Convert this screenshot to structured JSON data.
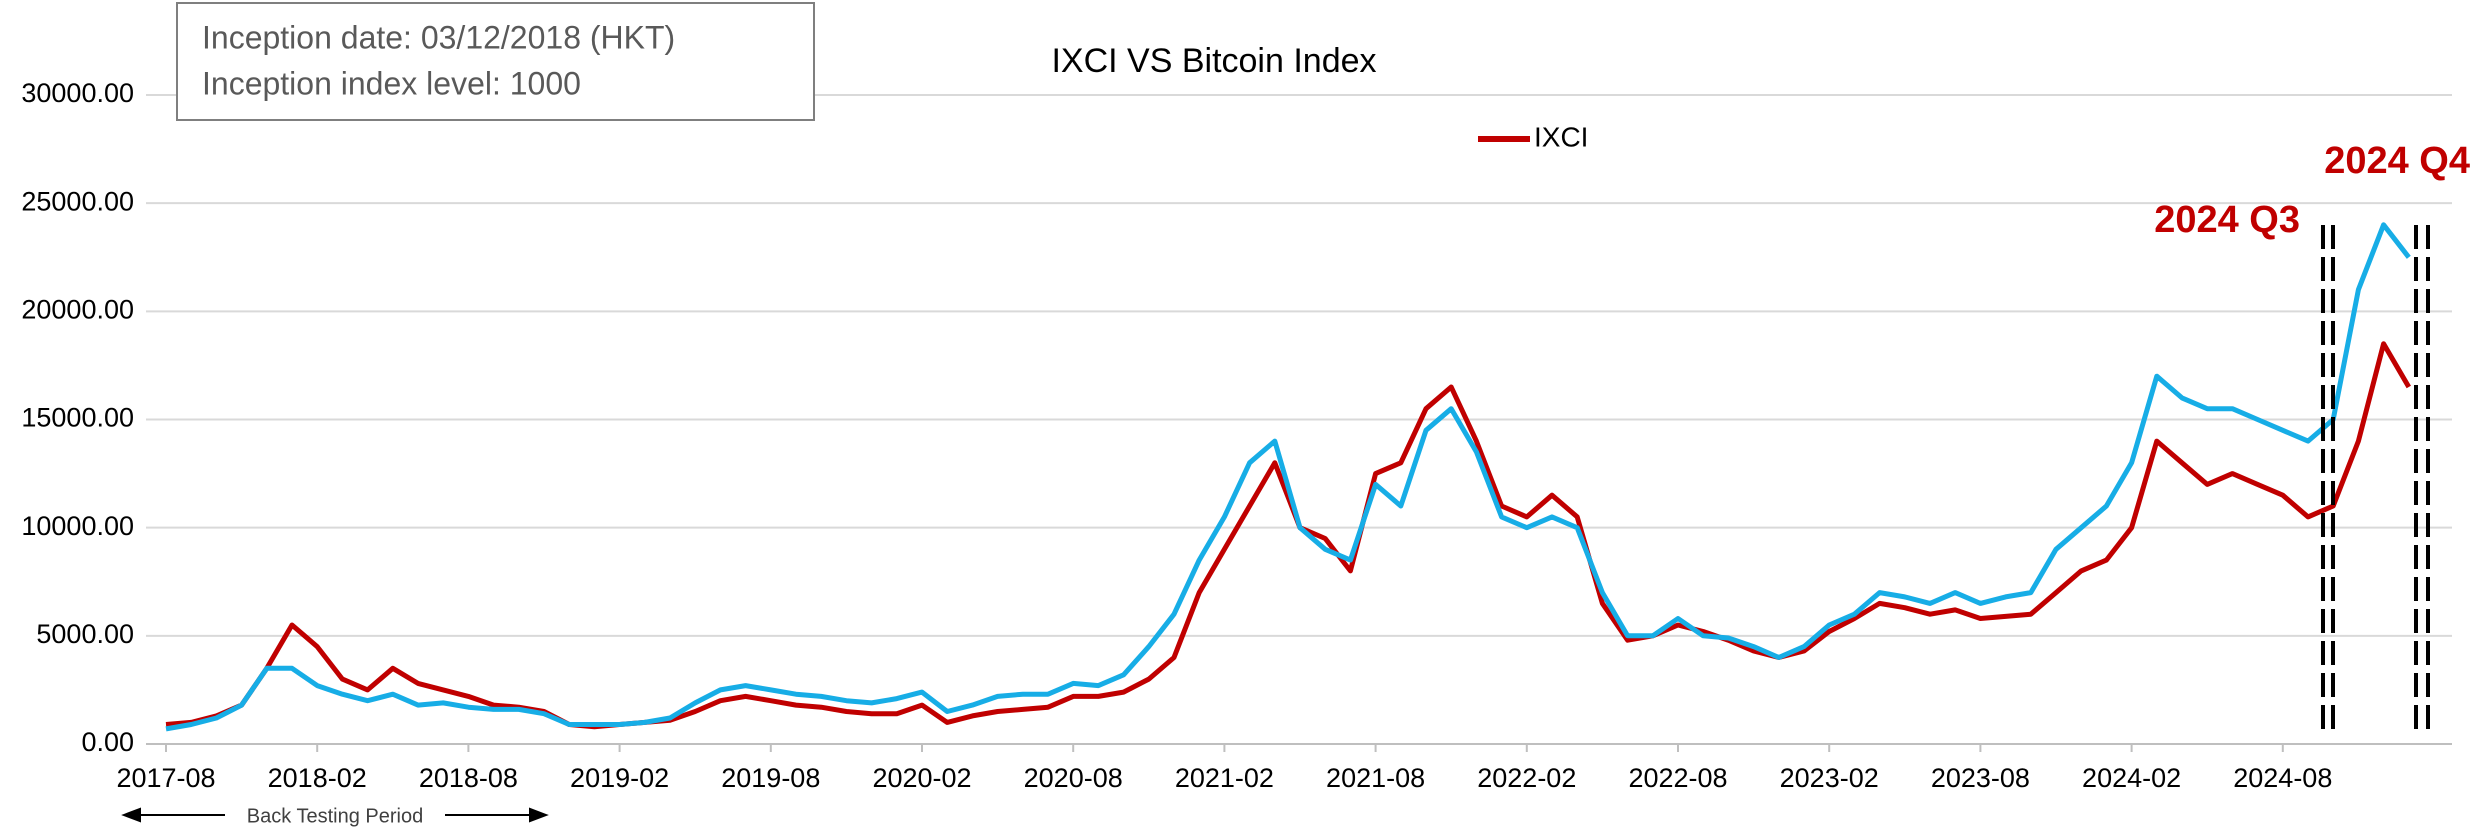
{
  "chart_data": {
    "type": "line",
    "title": "IXCI VS Bitcoin Index",
    "info_box": [
      "Inception date: 03/12/2018 (HKT)",
      "Inception index level: 1000"
    ],
    "annotations": [
      "2024 Q3",
      "2024 Q4"
    ],
    "period_label": "Back Testing Period",
    "x": [
      "2017-08",
      "2017-09",
      "2017-10",
      "2017-11",
      "2017-12",
      "2018-01",
      "2018-02",
      "2018-03",
      "2018-04",
      "2018-05",
      "2018-06",
      "2018-07",
      "2018-08",
      "2018-09",
      "2018-10",
      "2018-11",
      "2018-12",
      "2019-01",
      "2019-02",
      "2019-03",
      "2019-04",
      "2019-05",
      "2019-06",
      "2019-07",
      "2019-08",
      "2019-09",
      "2019-10",
      "2019-11",
      "2019-12",
      "2020-01",
      "2020-02",
      "2020-03",
      "2020-04",
      "2020-05",
      "2020-06",
      "2020-07",
      "2020-08",
      "2020-09",
      "2020-10",
      "2020-11",
      "2020-12",
      "2021-01",
      "2021-02",
      "2021-03",
      "2021-04",
      "2021-05",
      "2021-06",
      "2021-07",
      "2021-08",
      "2021-09",
      "2021-10",
      "2021-11",
      "2021-12",
      "2022-01",
      "2022-02",
      "2022-03",
      "2022-04",
      "2022-05",
      "2022-06",
      "2022-07",
      "2022-08",
      "2022-09",
      "2022-10",
      "2022-11",
      "2022-12",
      "2023-01",
      "2023-02",
      "2023-03",
      "2023-04",
      "2023-05",
      "2023-06",
      "2023-07",
      "2023-08",
      "2023-09",
      "2023-10",
      "2023-11",
      "2023-12",
      "2024-01",
      "2024-02",
      "2024-03",
      "2024-04",
      "2024-05",
      "2024-06",
      "2024-07",
      "2024-08",
      "2024-09",
      "2024-10",
      "2024-11",
      "2024-12",
      "2025-01"
    ],
    "series": [
      {
        "name": "IXCI",
        "color": "#c00000",
        "values": [
          900,
          1000,
          1300,
          1800,
          3500,
          5500,
          4500,
          3000,
          2500,
          3500,
          2800,
          2500,
          2200,
          1800,
          1700,
          1500,
          900,
          800,
          900,
          1000,
          1100,
          1500,
          2000,
          2200,
          2000,
          1800,
          1700,
          1500,
          1400,
          1400,
          1800,
          1000,
          1300,
          1500,
          1600,
          1700,
          2200,
          2200,
          2400,
          3000,
          4000,
          7000,
          9000,
          11000,
          13000,
          10000,
          9500,
          8000,
          12500,
          13000,
          15500,
          16500,
          14000,
          11000,
          10500,
          11500,
          10500,
          6500,
          4800,
          5000,
          5500,
          5200,
          4800,
          4300,
          4000,
          4300,
          5200,
          5800,
          6500,
          6300,
          6000,
          6200,
          5800,
          5900,
          6000,
          7000,
          8000,
          8500,
          10000,
          14000,
          13000,
          12000,
          12500,
          12000,
          11500,
          10500,
          11000,
          14000,
          18500,
          16500
        ]
      },
      {
        "color": "#17ade6",
        "values": [
          700,
          900,
          1200,
          1800,
          3500,
          3500,
          2700,
          2300,
          2000,
          2300,
          1800,
          1900,
          1700,
          1600,
          1600,
          1400,
          900,
          900,
          900,
          1000,
          1200,
          1900,
          2500,
          2700,
          2500,
          2300,
          2200,
          2000,
          1900,
          2100,
          2400,
          1500,
          1800,
          2200,
          2300,
          2300,
          2800,
          2700,
          3200,
          4500,
          6000,
          8500,
          10500,
          13000,
          14000,
          10000,
          9000,
          8500,
          12000,
          11000,
          14500,
          15500,
          13500,
          10500,
          10000,
          10500,
          10000,
          7000,
          5000,
          5000,
          5800,
          5000,
          4900,
          4500,
          4000,
          4500,
          5500,
          6000,
          7000,
          6800,
          6500,
          7000,
          6500,
          6800,
          7000,
          9000,
          10000,
          11000,
          13000,
          17000,
          16000,
          15500,
          15500,
          15000,
          14500,
          14000,
          15000,
          21000,
          24000,
          22500
        ]
      }
    ],
    "xlim": [
      "2017-08",
      "2025-02"
    ],
    "xticks": [
      "2017-08",
      "2018-02",
      "2018-08",
      "2019-02",
      "2019-08",
      "2020-02",
      "2020-08",
      "2021-02",
      "2021-08",
      "2022-02",
      "2022-08",
      "2023-02",
      "2023-08",
      "2024-02",
      "2024-08"
    ],
    "ylim": [
      0,
      30000
    ],
    "yticks": [
      {
        "value": 0,
        "label": "0.00"
      },
      {
        "value": 5000,
        "label": "5000.00"
      },
      {
        "value": 10000,
        "label": "10000.00"
      },
      {
        "value": 15000,
        "label": "15000.00"
      },
      {
        "value": 20000,
        "label": "20000.00"
      },
      {
        "value": 25000,
        "label": "25000.00"
      },
      {
        "value": 30000,
        "label": "30000.00"
      }
    ],
    "grid": true,
    "legend": "top"
  }
}
